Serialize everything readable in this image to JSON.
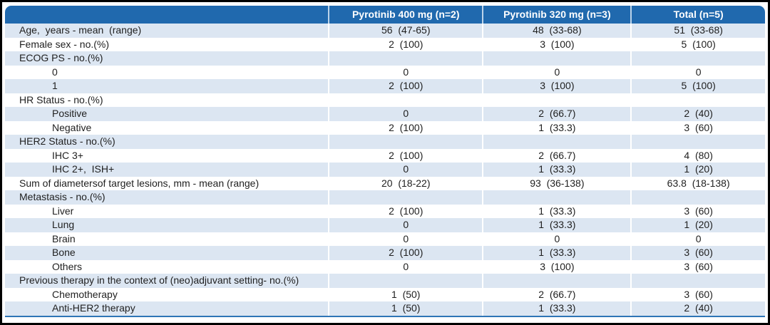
{
  "page": {
    "description": "Baseline patient characteristics table"
  },
  "colors": {
    "header_bg": "#2069ae",
    "header_text": "#ffffff",
    "stripe_bg": "#dce6f2",
    "row_bg": "#ffffff",
    "body_text": "#1f1f1f",
    "bottom_rule": "#2e75b6",
    "header_divider": "#bcd4ea",
    "outer_border": "#000000"
  },
  "table": {
    "columns": [
      {
        "label": ""
      },
      {
        "label": "Pyrotinib 400 mg (n=2)"
      },
      {
        "label": "Pyrotinib 320 mg (n=3)"
      },
      {
        "label": "Total (n=5)"
      }
    ],
    "rows": [
      {
        "label": "Age,  years - mean  (range)",
        "indent": false,
        "values": [
          "56  (47-65)",
          "48  (33-68)",
          "51  (33-68)"
        ]
      },
      {
        "label": "Female sex - no.(%)",
        "indent": false,
        "values": [
          "2  (100)",
          "3  (100)",
          "5  (100)"
        ]
      },
      {
        "label": "ECOG PS - no.(%)",
        "indent": false,
        "values": [
          "",
          "",
          ""
        ]
      },
      {
        "label": "0",
        "indent": true,
        "values": [
          "0",
          "0",
          "0"
        ]
      },
      {
        "label": "1",
        "indent": true,
        "values": [
          "2  (100)",
          "3  (100)",
          "5  (100)"
        ]
      },
      {
        "label": "HR Status - no.(%)",
        "indent": false,
        "values": [
          "",
          "",
          ""
        ]
      },
      {
        "label": "Positive",
        "indent": true,
        "values": [
          "0",
          "2  (66.7)",
          "2  (40)"
        ]
      },
      {
        "label": "Negative",
        "indent": true,
        "values": [
          "2  (100)",
          "1  (33.3)",
          "3  (60)"
        ]
      },
      {
        "label": "HER2 Status - no.(%)",
        "indent": false,
        "values": [
          "",
          "",
          ""
        ]
      },
      {
        "label": "IHC 3+",
        "indent": true,
        "values": [
          "2  (100)",
          "2  (66.7)",
          "4  (80)"
        ]
      },
      {
        "label": "IHC 2+,  ISH+",
        "indent": true,
        "values": [
          "0",
          "1  (33.3)",
          "1  (20)"
        ]
      },
      {
        "label": "Sum of diametersof target lesions, mm - mean (range)",
        "indent": false,
        "values": [
          "20  (18-22)",
          "93  (36-138)",
          "63.8  (18-138)"
        ]
      },
      {
        "label": "Metastasis - no.(%)",
        "indent": false,
        "values": [
          "",
          "",
          ""
        ]
      },
      {
        "label": "Liver",
        "indent": true,
        "values": [
          "2  (100)",
          "1  (33.3)",
          "3  (60)"
        ]
      },
      {
        "label": "Lung",
        "indent": true,
        "values": [
          "0",
          "1  (33.3)",
          "1  (20)"
        ]
      },
      {
        "label": "Brain",
        "indent": true,
        "values": [
          "0",
          "0",
          "0"
        ]
      },
      {
        "label": "Bone",
        "indent": true,
        "values": [
          "2  (100)",
          "1  (33.3)",
          "3  (60)"
        ]
      },
      {
        "label": "Others",
        "indent": true,
        "values": [
          "0",
          "3  (100)",
          "3  (60)"
        ]
      },
      {
        "label": "Previous therapy in the context of (neo)adjuvant setting- no.(%)",
        "indent": false,
        "values": [
          "",
          "",
          ""
        ]
      },
      {
        "label": "Chemotherapy",
        "indent": true,
        "values": [
          "1  (50)",
          "2  (66.7)",
          "3  (60)"
        ]
      },
      {
        "label": "Anti-HER2 therapy",
        "indent": true,
        "values": [
          "1  (50)",
          "1  (33.3)",
          "2  (40)"
        ]
      }
    ]
  }
}
